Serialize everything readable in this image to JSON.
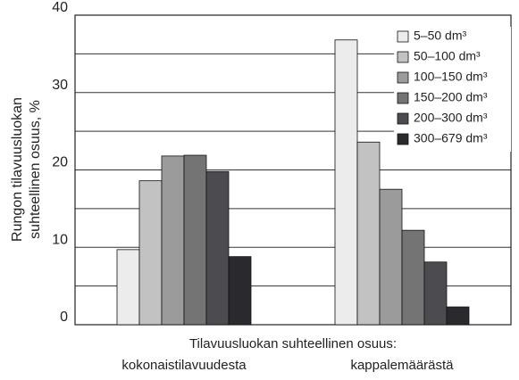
{
  "chart_data": {
    "type": "bar",
    "y_label": [
      "Rungon tilavuusluokan",
      "suhteellinen osuus, %"
    ],
    "x_label": "Tilavuusluokan suhteellinen osuus:",
    "categories": [
      "kokonaistilavuudesta",
      "kappalemäärästä"
    ],
    "series": [
      {
        "name": "5–50 dm³",
        "color": "#ececec",
        "values": [
          9.7,
          36.8
        ]
      },
      {
        "name": "50–100 dm³",
        "color": "#c2c2c2",
        "values": [
          18.6,
          23.6
        ]
      },
      {
        "name": "100–150 dm³",
        "color": "#9b9b9b",
        "values": [
          21.8,
          17.5
        ]
      },
      {
        "name": "150–200 dm³",
        "color": "#747474",
        "values": [
          21.9,
          12.2
        ]
      },
      {
        "name": "200–300 dm³",
        "color": "#4b4b50",
        "values": [
          19.8,
          8.1
        ]
      },
      {
        "name": "300–679 dm³",
        "color": "#2a2a2e",
        "values": [
          8.8,
          2.3
        ]
      }
    ],
    "ylim": [
      0,
      40
    ],
    "yticks": [
      0,
      10,
      20,
      30,
      40
    ],
    "minor_yticks": [
      5,
      15,
      25,
      35
    ],
    "grid": true,
    "legend": "top-right"
  }
}
